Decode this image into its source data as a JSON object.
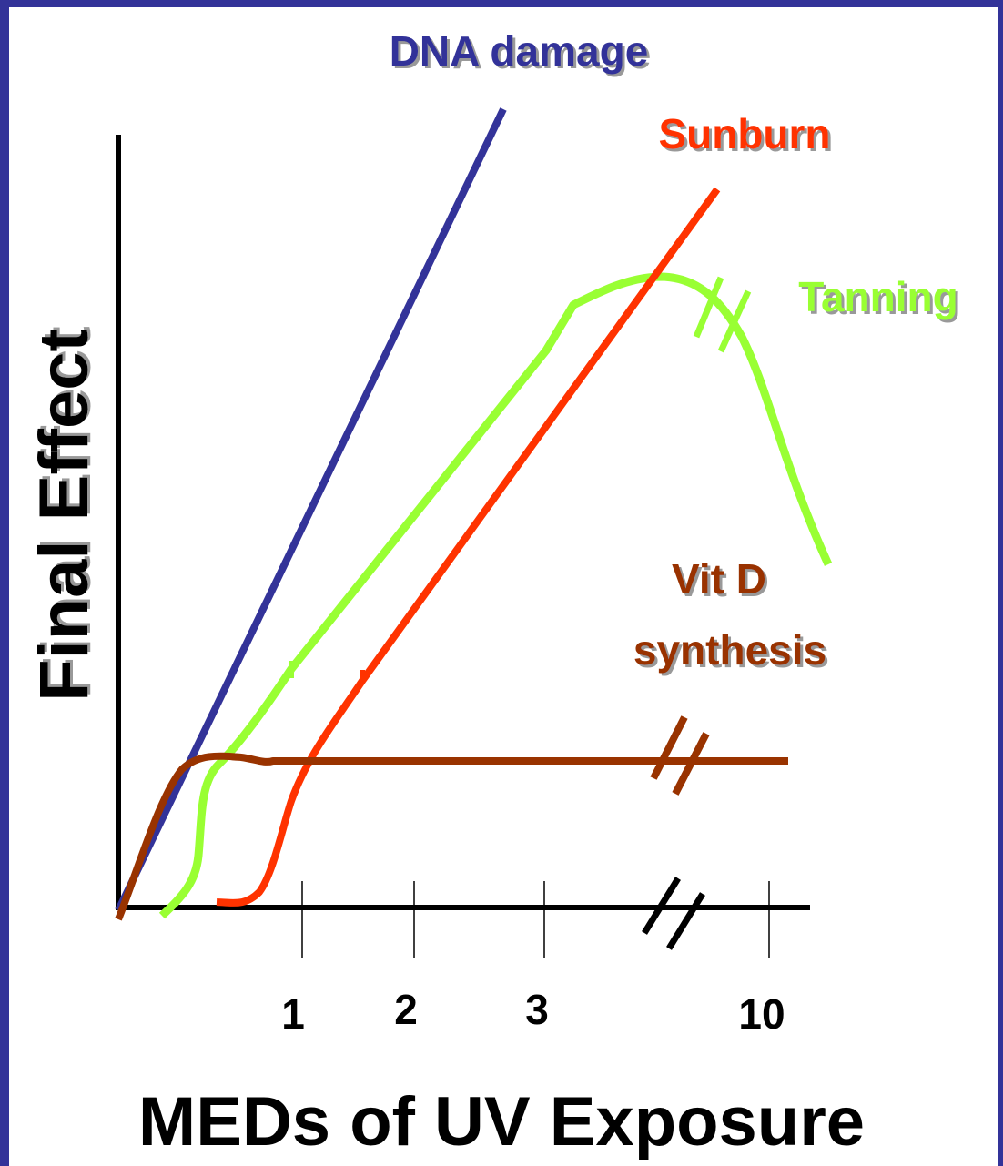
{
  "chart_data": {
    "type": "line",
    "title": "",
    "xlabel": "MEDs of UV Exposure",
    "ylabel": "Final Effect",
    "x_ticks": [
      "1",
      "2",
      "3",
      "10"
    ],
    "x_axis_break": "between 3 and 10",
    "grid": false,
    "legend": "none (series labeled directly on plot)",
    "colors": {
      "frame": "#333399",
      "axis": "#000000",
      "dna_damage": "#333399",
      "sunburn": "#ff3300",
      "tanning": "#99ff33",
      "vit_d": "#993300"
    },
    "series": [
      {
        "name": "DNA damage",
        "key": "dna",
        "x": [
          0,
          3.2
        ],
        "y": [
          0,
          1.21
        ],
        "shape": "straight line rising steeply from origin"
      },
      {
        "name": "Sunburn",
        "key": "sunburn",
        "x": [
          0.45,
          0.6,
          0.9,
          1.35,
          5.5
        ],
        "y": [
          0,
          0.02,
          0.31,
          0.48,
          1.1
        ],
        "shape": "sigmoid onset then linear rise"
      },
      {
        "name": "Tanning",
        "key": "tanning",
        "x": [
          0.2,
          0.38,
          0.7,
          2.0,
          3.2,
          4.6,
          6.1
        ],
        "y": [
          0,
          0.22,
          0.45,
          0.72,
          0.94,
          0.95,
          0.53
        ],
        "shape": "rises, plateaus, then declines (axis break shown on curve)"
      },
      {
        "name": "Vit D\nsynthesis",
        "key": "vitd",
        "x": [
          0,
          0.25,
          0.5,
          2.0,
          6.5
        ],
        "y": [
          0,
          0.23,
          0.23,
          0.23,
          0.23
        ],
        "shape": "rapid rise then flat plateau (axis break shown on curve)"
      }
    ],
    "labels": {
      "dna": "DNA damage",
      "sunburn": "Sunburn",
      "tanning": "Tanning",
      "vitd_line1": "Vit D",
      "vitd_line2": "synthesis"
    }
  }
}
